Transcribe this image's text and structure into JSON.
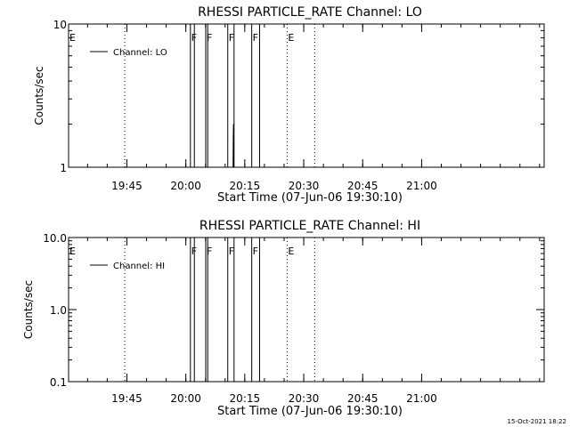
{
  "footer_timestamp": "15-Oct-2021 18:22",
  "chart_data": [
    {
      "type": "line",
      "title": "RHESSI PARTICLE_RATE Channel: LO",
      "xlabel": "Start Time (07-Jun-06 19:30:10)",
      "ylabel": "Counts/sec",
      "yscale": "log",
      "ylim": [
        1,
        10
      ],
      "yticks": [
        {
          "value": 1,
          "label": "1"
        },
        {
          "value": 10,
          "label": "10"
        }
      ],
      "xlim_minutes": [
        0,
        121
      ],
      "xticks": [
        {
          "minute": 14.83,
          "label": "19:45"
        },
        {
          "minute": 29.83,
          "label": "20:00"
        },
        {
          "minute": 44.83,
          "label": "20:15"
        },
        {
          "minute": 59.83,
          "label": "20:30"
        },
        {
          "minute": 74.83,
          "label": "20:45"
        },
        {
          "minute": 89.83,
          "label": "21:00"
        }
      ],
      "legend": {
        "label": "Channel: LO",
        "position": "top-left"
      },
      "event_lines": [
        {
          "minute": 0.0,
          "style": "solid",
          "label": "E"
        },
        {
          "minute": 14.3,
          "style": "dotted",
          "label": ""
        },
        {
          "minute": 31.0,
          "style": "solid",
          "label": "F"
        },
        {
          "minute": 32.0,
          "style": "solid",
          "label": ""
        },
        {
          "minute": 34.9,
          "style": "solid",
          "label": "F"
        },
        {
          "minute": 35.4,
          "style": "solid",
          "label": ""
        },
        {
          "minute": 40.5,
          "style": "solid",
          "label": "F"
        },
        {
          "minute": 42.1,
          "style": "solid",
          "label": ""
        },
        {
          "minute": 46.6,
          "style": "solid",
          "label": "F"
        },
        {
          "minute": 48.6,
          "style": "solid",
          "label": ""
        },
        {
          "minute": 55.6,
          "style": "dotted",
          "label": "E"
        },
        {
          "minute": 62.6,
          "style": "dotted",
          "label": ""
        }
      ],
      "series": [
        {
          "name": "Channel: LO",
          "x_minutes": [
            41.85,
            41.9,
            41.95,
            42.0,
            42.05
          ],
          "values": [
            1.0,
            1.55,
            2.0,
            1.3,
            1.0
          ]
        }
      ]
    },
    {
      "type": "line",
      "title": "RHESSI PARTICLE_RATE Channel: HI",
      "xlabel": "Start Time (07-Jun-06 19:30:10)",
      "ylabel": "Counts/sec",
      "yscale": "log",
      "ylim": [
        0.1,
        10
      ],
      "yticks": [
        {
          "value": 0.1,
          "label": "0.1"
        },
        {
          "value": 1,
          "label": "1.0"
        },
        {
          "value": 10,
          "label": "10.0"
        }
      ],
      "xlim_minutes": [
        0,
        121
      ],
      "xticks": [
        {
          "minute": 14.83,
          "label": "19:45"
        },
        {
          "minute": 29.83,
          "label": "20:00"
        },
        {
          "minute": 44.83,
          "label": "20:15"
        },
        {
          "minute": 59.83,
          "label": "20:30"
        },
        {
          "minute": 74.83,
          "label": "20:45"
        },
        {
          "minute": 89.83,
          "label": "21:00"
        }
      ],
      "legend": {
        "label": "Channel: HI",
        "position": "top-left"
      },
      "event_lines": [
        {
          "minute": 0.0,
          "style": "solid",
          "label": "E"
        },
        {
          "minute": 14.3,
          "style": "dotted",
          "label": ""
        },
        {
          "minute": 31.0,
          "style": "solid",
          "label": "F"
        },
        {
          "minute": 32.0,
          "style": "solid",
          "label": ""
        },
        {
          "minute": 34.9,
          "style": "solid",
          "label": "F"
        },
        {
          "minute": 35.4,
          "style": "solid",
          "label": ""
        },
        {
          "minute": 40.5,
          "style": "solid",
          "label": "F"
        },
        {
          "minute": 42.1,
          "style": "solid",
          "label": ""
        },
        {
          "minute": 46.6,
          "style": "solid",
          "label": "F"
        },
        {
          "minute": 48.6,
          "style": "solid",
          "label": ""
        },
        {
          "minute": 55.6,
          "style": "dotted",
          "label": "E"
        },
        {
          "minute": 62.6,
          "style": "dotted",
          "label": ""
        }
      ],
      "series": [
        {
          "name": "Channel: HI",
          "x_minutes": [],
          "values": []
        }
      ]
    }
  ]
}
